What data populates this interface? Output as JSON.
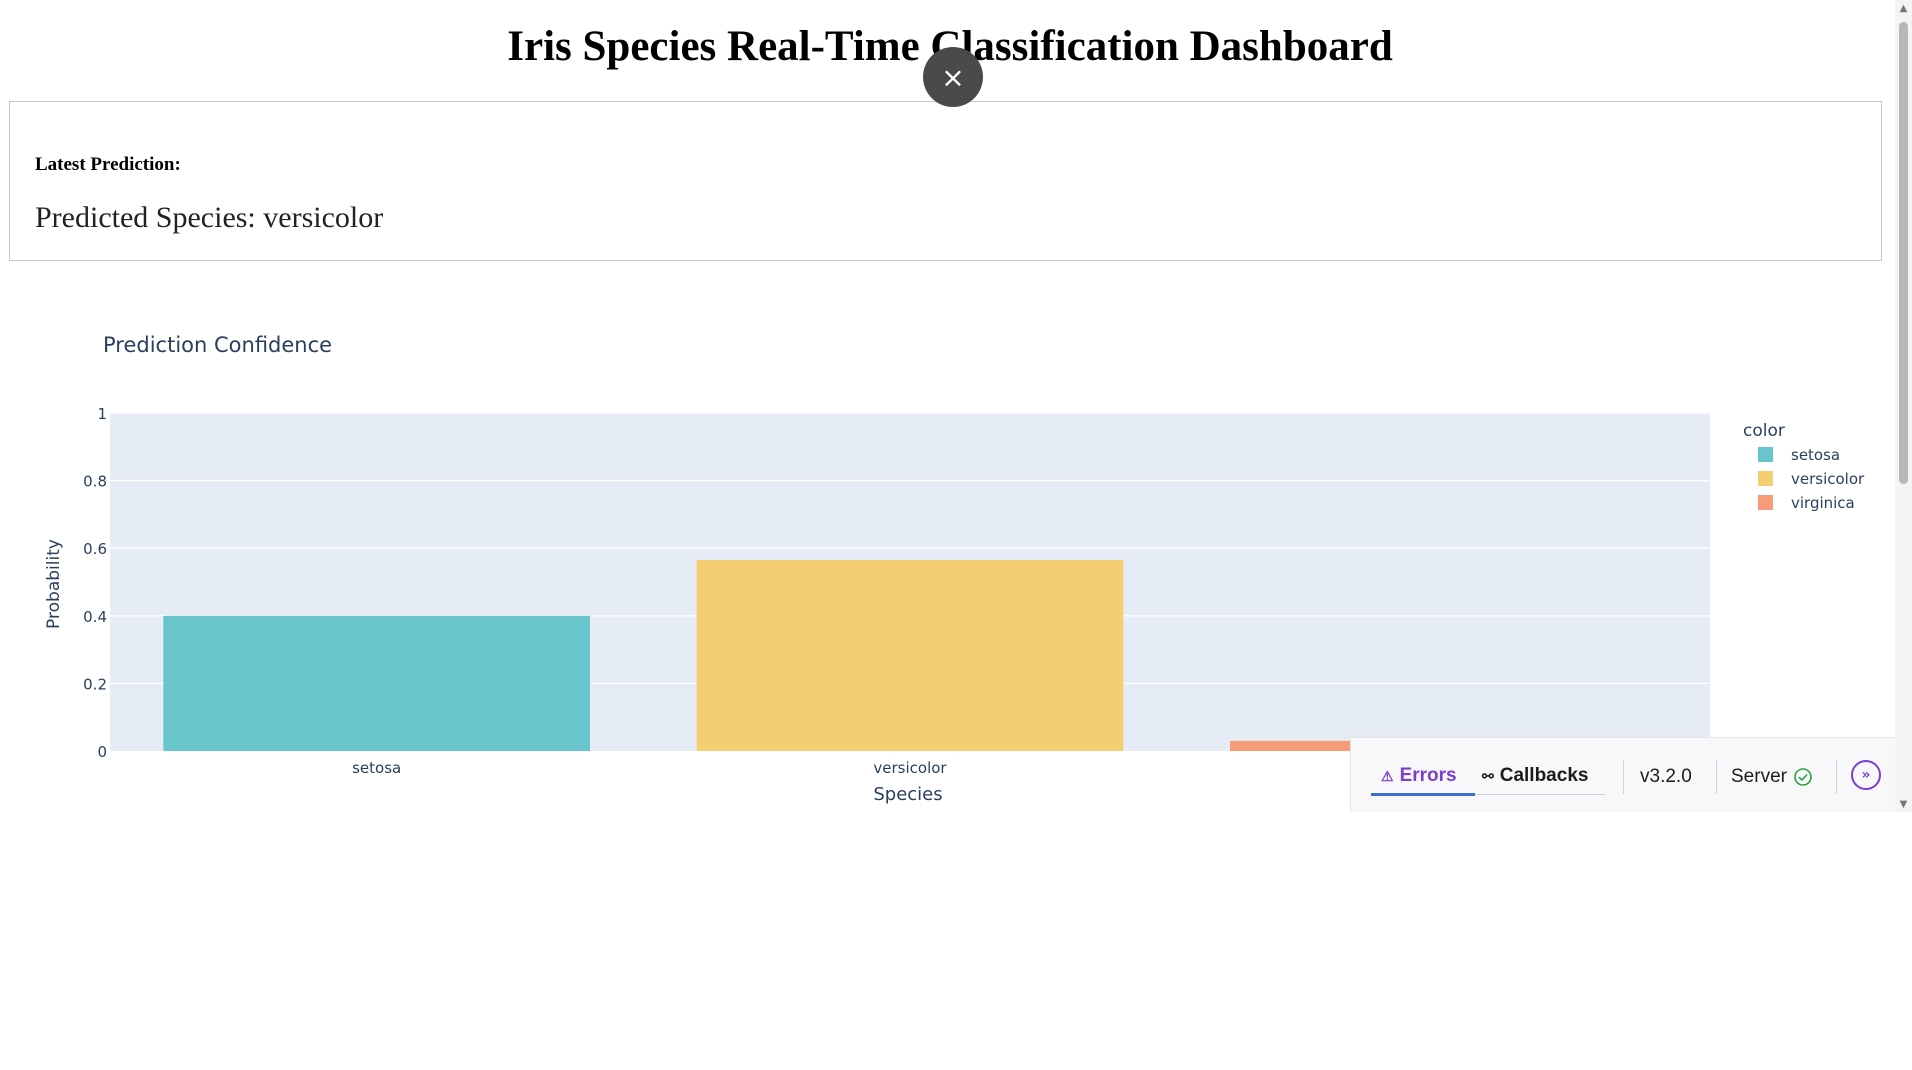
{
  "header": {
    "title": "Iris Species Real-Time Classification Dashboard"
  },
  "overlay": {
    "close_symbol": "×"
  },
  "prediction": {
    "label": "Latest Prediction:",
    "value": "Predicted Species: versicolor"
  },
  "chart_data": {
    "type": "bar",
    "title": "Prediction Confidence",
    "xlabel": "Species",
    "ylabel": "Probability",
    "categories": [
      "setosa",
      "versicolor",
      "virginica"
    ],
    "values": [
      0.4,
      0.565,
      0.03
    ],
    "ylim": [
      0,
      1
    ],
    "yticks": [
      "0",
      "0.2",
      "0.4",
      "0.6",
      "0.8",
      "1"
    ],
    "xtick_labels": [
      "setosa",
      "versicolor"
    ],
    "colors": [
      "#68c5cb",
      "#f4cf71",
      "#f89b78"
    ],
    "background": "#e5ecf6",
    "grid": true,
    "legend": {
      "title": "color",
      "placement": "right",
      "entries": [
        "setosa",
        "versicolor",
        "virginica"
      ]
    }
  },
  "devtools": {
    "errors_label": "Errors",
    "errors_icon": "warning-icon",
    "callbacks_label": "Callbacks",
    "callbacks_icon": "callback-graph-icon",
    "version": "v3.2.0",
    "server_label": "Server",
    "server_icon": "check-circle-icon",
    "expand_icon": "double-chevron-right-icon",
    "accent": "#7a3fd0",
    "ok_color": "#2ea043"
  }
}
